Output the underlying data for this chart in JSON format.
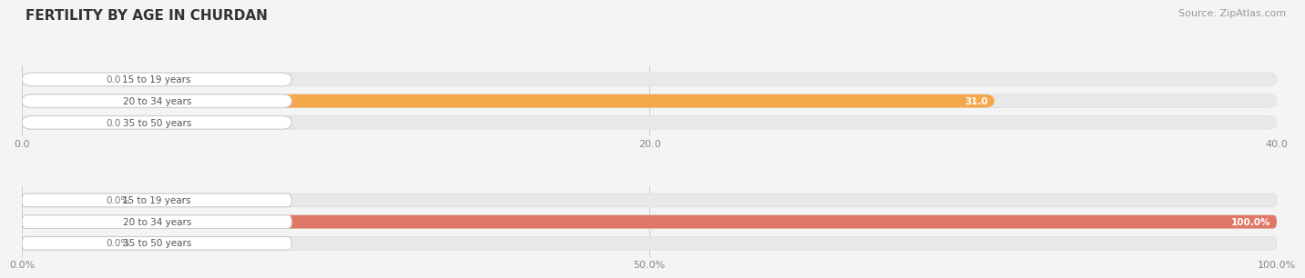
{
  "title": "FERTILITY BY AGE IN CHURDAN",
  "source": "Source: ZipAtlas.com",
  "top_chart": {
    "categories": [
      "15 to 19 years",
      "20 to 34 years",
      "35 to 50 years"
    ],
    "values": [
      0.0,
      31.0,
      0.0
    ],
    "xlim_max": 40.0,
    "xticks": [
      0.0,
      20.0,
      40.0
    ],
    "bar_color": "#F5A84B",
    "bar_color_zero": "#F5D090",
    "value_labels": [
      "0.0",
      "31.0",
      "0.0"
    ]
  },
  "bottom_chart": {
    "categories": [
      "15 to 19 years",
      "20 to 34 years",
      "35 to 50 years"
    ],
    "values": [
      0.0,
      100.0,
      0.0
    ],
    "xlim_max": 100.0,
    "xticks": [
      0.0,
      50.0,
      100.0
    ],
    "xticklabels": [
      "0.0%",
      "50.0%",
      "100.0%"
    ],
    "bar_color": "#E07868",
    "bar_color_zero": "#EEB8B0",
    "value_labels": [
      "0.0%",
      "100.0%",
      "0.0%"
    ]
  },
  "fig_bg": "#f4f4f4",
  "chart_bg": "#f4f4f4",
  "bar_bg": "#e8e8e8",
  "label_bg": "#ffffff",
  "title_color": "#333333",
  "source_color": "#999999",
  "cat_text_color": "#555555",
  "val_text_color_white": "#ffffff",
  "val_text_color_dark": "#777777",
  "grid_color": "#cccccc"
}
